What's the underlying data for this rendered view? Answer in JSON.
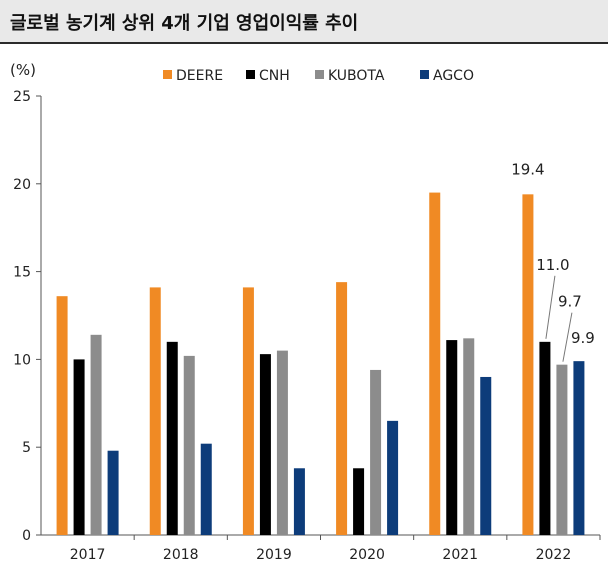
{
  "title": "글로벌 농기계 상위 4개 기업 영업이익률 추이",
  "chart_data": {
    "type": "bar",
    "ylabel": "(%)",
    "ylim": [
      0,
      25
    ],
    "yticks": [
      0,
      5,
      10,
      15,
      20,
      25
    ],
    "categories": [
      "2017",
      "2018",
      "2019",
      "2020",
      "2021",
      "2022"
    ],
    "legend_position": "top",
    "grid": false,
    "series": [
      {
        "name": "DEERE",
        "color": "#f08a24",
        "values": [
          13.6,
          14.1,
          14.1,
          14.4,
          19.5,
          19.4
        ]
      },
      {
        "name": "CNH",
        "color": "#000000",
        "values": [
          10.0,
          11.0,
          10.3,
          3.8,
          11.1,
          11.0
        ]
      },
      {
        "name": "KUBOTA",
        "color": "#8c8c8c",
        "values": [
          11.4,
          10.2,
          10.5,
          9.4,
          11.2,
          9.7
        ]
      },
      {
        "name": "AGCO",
        "color": "#0d3c7a",
        "values": [
          4.8,
          5.2,
          3.8,
          6.5,
          9.0,
          9.9
        ]
      }
    ],
    "annotations": [
      {
        "category": "2022",
        "series": "DEERE",
        "text": "19.4"
      },
      {
        "category": "2022",
        "series": "CNH",
        "text": "11.0"
      },
      {
        "category": "2022",
        "series": "KUBOTA",
        "text": "9.7"
      },
      {
        "category": "2022",
        "series": "AGCO",
        "text": "9.9"
      }
    ]
  }
}
